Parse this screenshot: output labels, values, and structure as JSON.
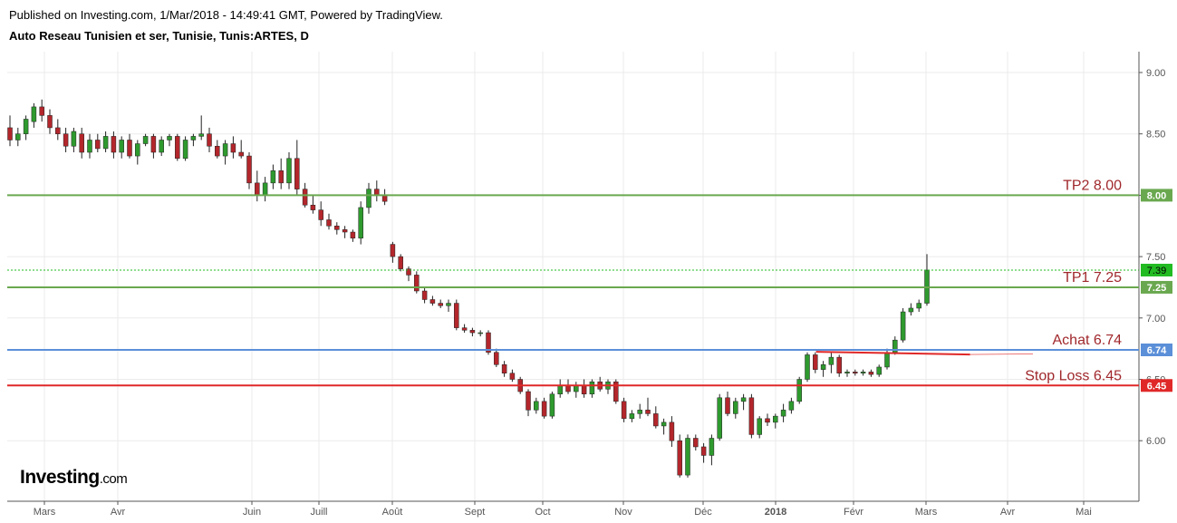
{
  "header": {
    "published": "Published on Investing.com, 1/Mar/2018 - 14:49:41 GMT, Powered by TradingView.",
    "symbol": "Auto Reseau Tunisien et ser, Tunisie, Tunis:ARTES, D"
  },
  "logo": {
    "brand": "Investing",
    "suffix": ".com"
  },
  "chart_data": {
    "type": "candlestick",
    "title": "Auto Reseau Tunisien et ser, Tunisie, Tunis:ARTES, D",
    "x_tick_labels": [
      "Mars",
      "Avr",
      "Juin",
      "Juill",
      "Août",
      "Sept",
      "Oct",
      "Nov",
      "Déc",
      "2018",
      "Févr",
      "Mars",
      "Avr",
      "Mai"
    ],
    "y_tick_labels": [
      "9.00",
      "8.50",
      "8.00",
      "7.50",
      "7.00",
      "6.50",
      "6.00"
    ],
    "y_range": [
      5.55,
      9.2
    ],
    "grid": true,
    "up_color": "#2e9a2e",
    "down_color": "#b3262b",
    "ohlc": [
      [
        8.55,
        8.65,
        8.4,
        8.45
      ],
      [
        8.45,
        8.55,
        8.4,
        8.5
      ],
      [
        8.5,
        8.65,
        8.45,
        8.62
      ],
      [
        8.6,
        8.75,
        8.55,
        8.72
      ],
      [
        8.72,
        8.78,
        8.6,
        8.65
      ],
      [
        8.65,
        8.7,
        8.5,
        8.55
      ],
      [
        8.55,
        8.62,
        8.45,
        8.5
      ],
      [
        8.5,
        8.55,
        8.35,
        8.4
      ],
      [
        8.4,
        8.55,
        8.35,
        8.52
      ],
      [
        8.5,
        8.55,
        8.3,
        8.35
      ],
      [
        8.35,
        8.5,
        8.3,
        8.45
      ],
      [
        8.45,
        8.5,
        8.35,
        8.38
      ],
      [
        8.38,
        8.52,
        8.35,
        8.48
      ],
      [
        8.48,
        8.52,
        8.3,
        8.35
      ],
      [
        8.35,
        8.48,
        8.3,
        8.45
      ],
      [
        8.45,
        8.5,
        8.3,
        8.32
      ],
      [
        8.32,
        8.45,
        8.25,
        8.42
      ],
      [
        8.42,
        8.5,
        8.4,
        8.48
      ],
      [
        8.48,
        8.5,
        8.3,
        8.35
      ],
      [
        8.35,
        8.48,
        8.32,
        8.45
      ],
      [
        8.45,
        8.5,
        8.4,
        8.48
      ],
      [
        8.48,
        8.5,
        8.28,
        8.3
      ],
      [
        8.3,
        8.48,
        8.28,
        8.45
      ],
      [
        8.45,
        8.5,
        8.4,
        8.48
      ],
      [
        8.48,
        8.65,
        8.45,
        8.5
      ],
      [
        8.5,
        8.55,
        8.35,
        8.4
      ],
      [
        8.4,
        8.45,
        8.3,
        8.32
      ],
      [
        8.32,
        8.45,
        8.25,
        8.42
      ],
      [
        8.42,
        8.48,
        8.3,
        8.35
      ],
      [
        8.35,
        8.45,
        8.3,
        8.32
      ],
      [
        8.32,
        8.35,
        8.05,
        8.1
      ],
      [
        8.1,
        8.2,
        7.95,
        8.0
      ],
      [
        8.0,
        8.15,
        7.95,
        8.1
      ],
      [
        8.1,
        8.25,
        8.05,
        8.2
      ],
      [
        8.2,
        8.3,
        8.05,
        8.1
      ],
      [
        8.1,
        8.35,
        8.05,
        8.3
      ],
      [
        8.3,
        8.45,
        8.0,
        8.05
      ],
      [
        8.05,
        8.1,
        7.9,
        7.92
      ],
      [
        7.92,
        8.0,
        7.85,
        7.88
      ],
      [
        7.88,
        7.95,
        7.75,
        7.8
      ],
      [
        7.8,
        7.85,
        7.72,
        7.75
      ],
      [
        7.75,
        7.78,
        7.68,
        7.72
      ],
      [
        7.72,
        7.75,
        7.65,
        7.7
      ],
      [
        7.7,
        7.72,
        7.62,
        7.65
      ],
      [
        7.65,
        7.95,
        7.6,
        7.9
      ],
      [
        7.9,
        8.1,
        7.85,
        8.05
      ],
      [
        8.05,
        8.12,
        7.95,
        8.0
      ],
      [
        8.0,
        8.05,
        7.92,
        7.95
      ],
      [
        7.6,
        7.62,
        7.45,
        7.5
      ],
      [
        7.5,
        7.52,
        7.38,
        7.4
      ],
      [
        7.4,
        7.42,
        7.3,
        7.35
      ],
      [
        7.35,
        7.38,
        7.2,
        7.22
      ],
      [
        7.22,
        7.25,
        7.12,
        7.15
      ],
      [
        7.15,
        7.18,
        7.1,
        7.12
      ],
      [
        7.12,
        7.15,
        7.08,
        7.1
      ],
      [
        7.1,
        7.15,
        7.05,
        7.12
      ],
      [
        7.12,
        7.15,
        6.9,
        6.92
      ],
      [
        6.92,
        6.95,
        6.88,
        6.9
      ],
      [
        6.9,
        6.92,
        6.85,
        6.88
      ],
      [
        6.88,
        6.9,
        6.85,
        6.88
      ],
      [
        6.88,
        6.9,
        6.7,
        6.72
      ],
      [
        6.72,
        6.75,
        6.6,
        6.62
      ],
      [
        6.62,
        6.65,
        6.52,
        6.55
      ],
      [
        6.55,
        6.58,
        6.48,
        6.5
      ],
      [
        6.5,
        6.52,
        6.38,
        6.4
      ],
      [
        6.4,
        6.42,
        6.2,
        6.25
      ],
      [
        6.25,
        6.35,
        6.22,
        6.32
      ],
      [
        6.32,
        6.35,
        6.18,
        6.2
      ],
      [
        6.2,
        6.4,
        6.18,
        6.38
      ],
      [
        6.38,
        6.5,
        6.35,
        6.45
      ],
      [
        6.45,
        6.5,
        6.38,
        6.4
      ],
      [
        6.4,
        6.48,
        6.35,
        6.45
      ],
      [
        6.45,
        6.5,
        6.35,
        6.38
      ],
      [
        6.38,
        6.5,
        6.35,
        6.48
      ],
      [
        6.48,
        6.52,
        6.4,
        6.42
      ],
      [
        6.42,
        6.5,
        6.38,
        6.48
      ],
      [
        6.48,
        6.5,
        6.3,
        6.32
      ],
      [
        6.32,
        6.35,
        6.15,
        6.18
      ],
      [
        6.18,
        6.25,
        6.15,
        6.22
      ],
      [
        6.22,
        6.3,
        6.18,
        6.25
      ],
      [
        6.25,
        6.35,
        6.2,
        6.22
      ],
      [
        6.22,
        6.28,
        6.1,
        6.12
      ],
      [
        6.12,
        6.18,
        6.05,
        6.15
      ],
      [
        6.15,
        6.2,
        5.95,
        6.0
      ],
      [
        6.0,
        6.05,
        5.7,
        5.72
      ],
      [
        5.72,
        6.05,
        5.7,
        6.02
      ],
      [
        6.02,
        6.05,
        5.92,
        5.95
      ],
      [
        5.95,
        5.98,
        5.82,
        5.88
      ],
      [
        5.88,
        6.05,
        5.8,
        6.02
      ],
      [
        6.02,
        6.38,
        6.0,
        6.35
      ],
      [
        6.35,
        6.4,
        6.2,
        6.22
      ],
      [
        6.22,
        6.35,
        6.18,
        6.32
      ],
      [
        6.32,
        6.38,
        6.25,
        6.35
      ],
      [
        6.35,
        6.38,
        6.02,
        6.05
      ],
      [
        6.05,
        6.2,
        6.02,
        6.18
      ],
      [
        6.18,
        6.22,
        6.12,
        6.15
      ],
      [
        6.15,
        6.22,
        6.1,
        6.2
      ],
      [
        6.2,
        6.3,
        6.15,
        6.25
      ],
      [
        6.25,
        6.35,
        6.22,
        6.32
      ],
      [
        6.32,
        6.52,
        6.3,
        6.5
      ],
      [
        6.5,
        6.72,
        6.48,
        6.7
      ],
      [
        6.7,
        6.72,
        6.55,
        6.58
      ],
      [
        6.58,
        6.65,
        6.52,
        6.62
      ],
      [
        6.62,
        6.72,
        6.55,
        6.68
      ],
      [
        6.68,
        6.7,
        6.52,
        6.55
      ],
      [
        6.55,
        6.58,
        6.52,
        6.56
      ],
      [
        6.56,
        6.58,
        6.53,
        6.55
      ],
      [
        6.55,
        6.58,
        6.53,
        6.56
      ],
      [
        6.56,
        6.58,
        6.52,
        6.54
      ],
      [
        6.54,
        6.62,
        6.52,
        6.6
      ],
      [
        6.6,
        6.75,
        6.58,
        6.72
      ],
      [
        6.72,
        6.85,
        6.7,
        6.82
      ],
      [
        6.82,
        7.08,
        6.8,
        7.05
      ],
      [
        7.05,
        7.12,
        7.02,
        7.08
      ],
      [
        7.08,
        7.15,
        7.05,
        7.12
      ],
      [
        7.12,
        7.52,
        7.1,
        7.39
      ]
    ],
    "horizontal_lines": [
      {
        "label": "TP2 8.00",
        "tag": "8.00",
        "value": 8.0,
        "color": "#6aa84f"
      },
      {
        "label": "TP1 7.25",
        "tag": "7.25",
        "value": 7.25,
        "color": "#6aa84f"
      },
      {
        "label": "Achat 6.74",
        "tag": "6.74",
        "value": 6.74,
        "color": "#5b8fd8"
      },
      {
        "label": "Stop Loss 6.45",
        "tag": "6.45",
        "value": 6.45,
        "color": "#e02828"
      }
    ],
    "last_price": {
      "tag": "7.39",
      "value": 7.39,
      "color": "#22bb22"
    },
    "trend_segment": {
      "from_index": 102,
      "to_index": 117,
      "value": 6.71,
      "color": "#e02828"
    }
  }
}
